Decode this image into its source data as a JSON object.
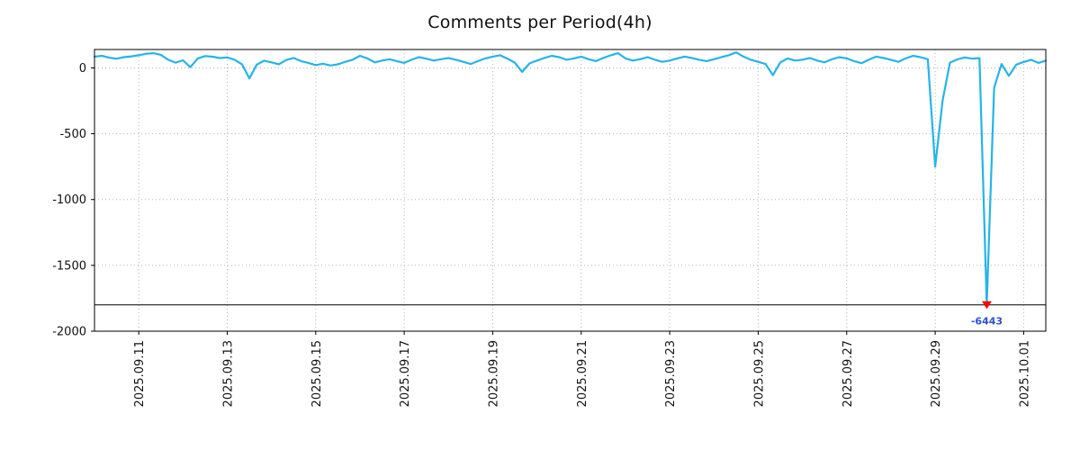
{
  "chart_data": {
    "type": "line",
    "title": "Comments per Period(4h)",
    "xlabel": "",
    "ylabel": "",
    "legend_position": "none",
    "grid": true,
    "x_domain": [
      0,
      21.5
    ],
    "y_domain": [
      -2000,
      140
    ],
    "x_ticks": [
      {
        "pos": 1,
        "label": "2025.09.11"
      },
      {
        "pos": 3,
        "label": "2025.09.13"
      },
      {
        "pos": 5,
        "label": "2025.09.15"
      },
      {
        "pos": 7,
        "label": "2025.09.17"
      },
      {
        "pos": 9,
        "label": "2025.09.19"
      },
      {
        "pos": 11,
        "label": "2025.09.21"
      },
      {
        "pos": 13,
        "label": "2025.09.23"
      },
      {
        "pos": 15,
        "label": "2025.09.25"
      },
      {
        "pos": 17,
        "label": "2025.09.27"
      },
      {
        "pos": 19,
        "label": "2025.09.29"
      },
      {
        "pos": 21,
        "label": "2025.10.01"
      }
    ],
    "y_ticks": [
      0,
      -500,
      -1000,
      -1500,
      -2000
    ],
    "points_per_day": 6,
    "values": [
      85,
      92,
      78,
      70,
      82,
      88,
      96,
      108,
      112,
      100,
      62,
      40,
      58,
      5,
      72,
      90,
      85,
      75,
      80,
      62,
      28,
      -80,
      25,
      55,
      42,
      28,
      60,
      76,
      52,
      38,
      22,
      32,
      18,
      28,
      46,
      62,
      92,
      72,
      42,
      56,
      66,
      52,
      38,
      62,
      82,
      70,
      56,
      66,
      76,
      62,
      46,
      30,
      52,
      72,
      86,
      96,
      70,
      40,
      -30,
      35,
      56,
      76,
      92,
      82,
      62,
      72,
      86,
      66,
      52,
      76,
      96,
      112,
      72,
      56,
      66,
      82,
      62,
      46,
      56,
      72,
      86,
      76,
      62,
      52,
      66,
      82,
      96,
      118,
      86,
      62,
      46,
      30,
      -55,
      42,
      72,
      56,
      62,
      76,
      56,
      42,
      66,
      82,
      72,
      52,
      36,
      62,
      86,
      76,
      62,
      46,
      72,
      92,
      82,
      66,
      -750,
      -250,
      40,
      65,
      80,
      70,
      75,
      -6443,
      -150,
      30,
      -60,
      25,
      45,
      62,
      38,
      55
    ],
    "min_value": -6443,
    "min_value_label": "-6443",
    "clip_line_value": -1800,
    "line_color": "#25b4e8",
    "marker_color": "#ff0000",
    "min_label_color": "#2d50d0",
    "grid_color": "#b3b3b3",
    "axis_color": "#000000"
  }
}
